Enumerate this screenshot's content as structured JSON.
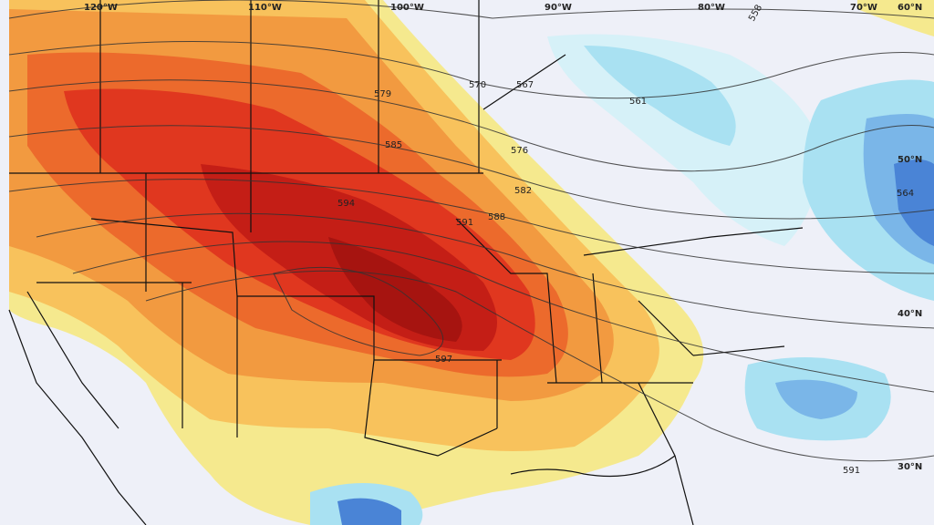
{
  "map": {
    "longitude_labels": [
      {
        "text": "120°W"
      },
      {
        "text": "110°W"
      },
      {
        "text": "100°W"
      },
      {
        "text": "90°W"
      },
      {
        "text": "80°W"
      },
      {
        "text": "70°W"
      }
    ],
    "latitude_labels": [
      {
        "text": "60°N"
      },
      {
        "text": "50°N"
      },
      {
        "text": "40°N"
      },
      {
        "text": "30°N"
      }
    ],
    "contour_labels": [
      {
        "text": "579"
      },
      {
        "text": "570"
      },
      {
        "text": "567"
      },
      {
        "text": "561"
      },
      {
        "text": "558"
      },
      {
        "text": "585"
      },
      {
        "text": "576"
      },
      {
        "text": "594"
      },
      {
        "text": "582"
      },
      {
        "text": "588"
      },
      {
        "text": "591"
      },
      {
        "text": "597"
      },
      {
        "text": "564"
      },
      {
        "text": "591"
      }
    ]
  }
}
